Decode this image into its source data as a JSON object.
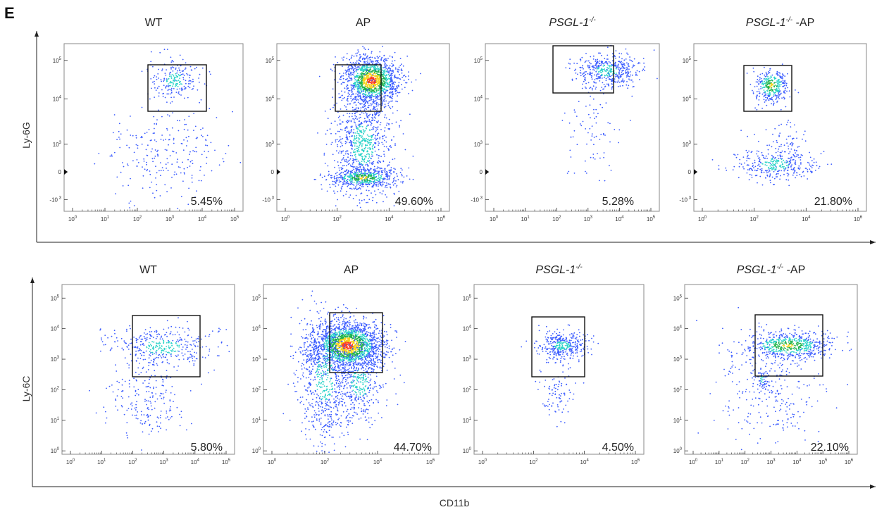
{
  "panel_letter": "E",
  "x_label": "CD11b",
  "colors": {
    "frame": "#888888",
    "gate": "#111111",
    "low": "#3a5bff",
    "mid": "#2ad3c8",
    "high": "#ff3a1a",
    "ring": "#1fb34a"
  },
  "rows": [
    {
      "y_label": "Ly-6G",
      "panels": [
        {
          "title": "WT",
          "pct": "5.45%",
          "xticks": [
            "10",
            "10",
            "10",
            "10",
            "10",
            "10"
          ],
          "xexp": [
            "0",
            "1",
            "2",
            "3",
            "4",
            "5"
          ]
        },
        {
          "title": "AP",
          "pct": "49.60%",
          "xticks": [
            "10",
            "10",
            "10",
            "10"
          ],
          "xexp": [
            "0",
            "2",
            "4",
            "6"
          ]
        },
        {
          "title": "PSGL-1",
          "title_sup": "-/-",
          "title_suffix": "",
          "pct": "5.28%",
          "xticks": [
            "10",
            "10",
            "10",
            "10",
            "10",
            "10"
          ],
          "xexp": [
            "0",
            "1",
            "2",
            "3",
            "4",
            "5"
          ]
        },
        {
          "title": "PSGL-1",
          "title_sup": "-/-",
          "title_suffix": " -AP",
          "pct": "21.80%",
          "xticks": [
            "10",
            "10",
            "10",
            "10"
          ],
          "xexp": [
            "0",
            "2",
            "4",
            "6"
          ]
        }
      ],
      "yticks": [
        "10",
        "10",
        "10",
        "0",
        "-10"
      ],
      "yexp": [
        "5",
        "4",
        "3",
        "",
        "3"
      ]
    },
    {
      "y_label": "Ly-6C",
      "panels": [
        {
          "title": "WT",
          "pct": "5.80%",
          "xticks": [
            "10",
            "10",
            "10",
            "10",
            "10",
            "10"
          ],
          "xexp": [
            "0",
            "1",
            "2",
            "3",
            "4",
            "5"
          ]
        },
        {
          "title": "AP",
          "pct": "44.70%",
          "xticks": [
            "10",
            "10",
            "10",
            "10"
          ],
          "xexp": [
            "0",
            "2",
            "4",
            "6"
          ]
        },
        {
          "title": "PSGL-1",
          "title_sup": "-/-",
          "title_suffix": "",
          "pct": "4.50%",
          "xticks": [
            "10",
            "10",
            "10",
            "10"
          ],
          "xexp": [
            "0",
            "2",
            "4",
            "6"
          ]
        },
        {
          "title": "PSGL-1",
          "title_sup": "-/-",
          "title_suffix": " -AP",
          "pct": "22.10%",
          "xticks": [
            "10",
            "10",
            "10",
            "10",
            "10",
            "10",
            "10"
          ],
          "xexp": [
            "0",
            "1",
            "2",
            "3",
            "4",
            "5",
            "6"
          ]
        }
      ],
      "yticks": [
        "10",
        "10",
        "10",
        "10",
        "10",
        "10"
      ],
      "yexp": [
        "5",
        "4",
        "3",
        "2",
        "1",
        "0"
      ]
    }
  ],
  "chart_data": [
    {
      "type": "scatter",
      "title": "WT",
      "ylabel": "Ly-6G",
      "xlabel": "CD11b",
      "gate_percent": 5.45
    },
    {
      "type": "scatter",
      "title": "AP",
      "ylabel": "Ly-6G",
      "xlabel": "CD11b",
      "gate_percent": 49.6
    },
    {
      "type": "scatter",
      "title": "PSGL-1-/-",
      "ylabel": "Ly-6G",
      "xlabel": "CD11b",
      "gate_percent": 5.28
    },
    {
      "type": "scatter",
      "title": "PSGL-1-/- -AP",
      "ylabel": "Ly-6G",
      "xlabel": "CD11b",
      "gate_percent": 21.8
    },
    {
      "type": "scatter",
      "title": "WT",
      "ylabel": "Ly-6C",
      "xlabel": "CD11b",
      "gate_percent": 5.8
    },
    {
      "type": "scatter",
      "title": "AP",
      "ylabel": "Ly-6C",
      "xlabel": "CD11b",
      "gate_percent": 44.7
    },
    {
      "type": "scatter",
      "title": "PSGL-1-/-",
      "ylabel": "Ly-6C",
      "xlabel": "CD11b",
      "gate_percent": 4.5
    },
    {
      "type": "scatter",
      "title": "PSGL-1-/- -AP",
      "ylabel": "Ly-6C",
      "xlabel": "CD11b",
      "gate_percent": 22.1
    }
  ]
}
